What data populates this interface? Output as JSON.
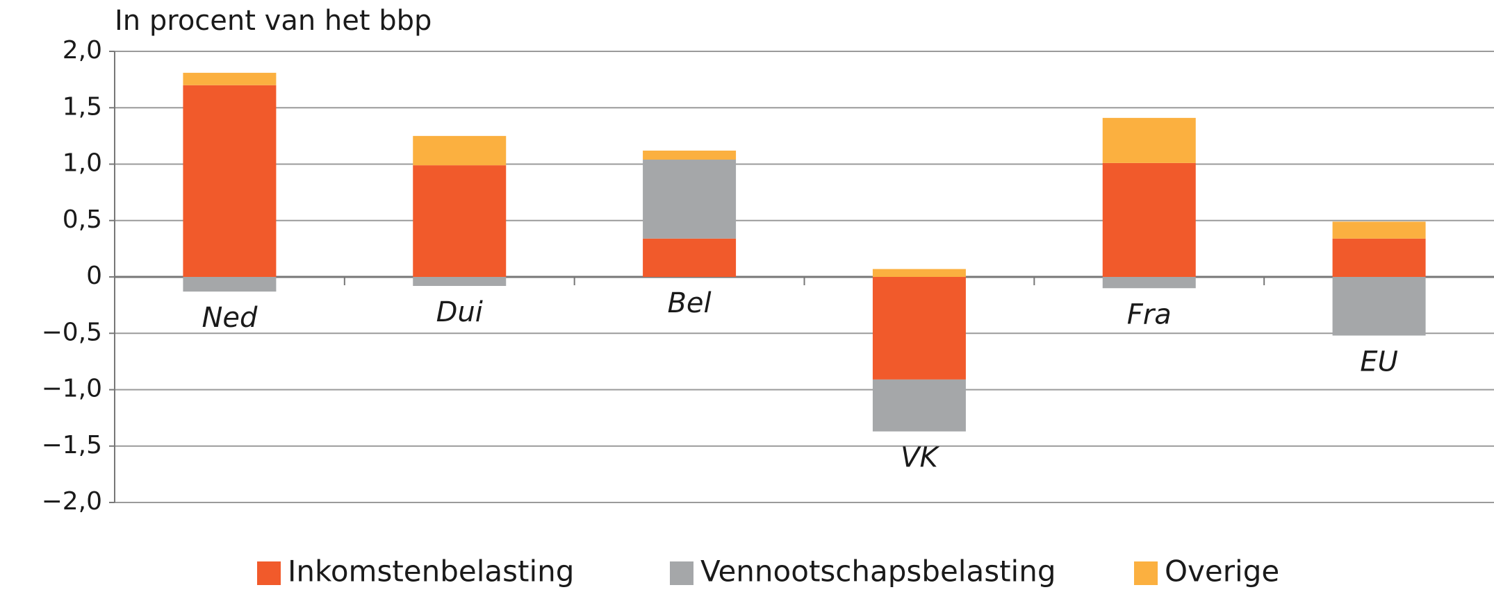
{
  "chart_data": {
    "type": "stacked_bar",
    "title": "In procent van het bbp",
    "categories": [
      "Ned",
      "Dui",
      "Bel",
      "VK",
      "Fra",
      "EU"
    ],
    "series": [
      {
        "name": "Inkomstenbelasting",
        "color": "#f15a2b",
        "values": [
          1.7,
          0.99,
          0.34,
          -0.91,
          1.01,
          0.34
        ]
      },
      {
        "name": "Vennootschapsbelasting",
        "color": "#a5a7a9",
        "values": [
          -0.13,
          -0.08,
          0.7,
          -0.46,
          -0.1,
          -0.52
        ]
      },
      {
        "name": "Overige",
        "color": "#fbb040",
        "values": [
          0.11,
          0.26,
          0.08,
          0.07,
          0.4,
          0.15
        ]
      }
    ],
    "ylim": [
      -2.0,
      2.0
    ],
    "yticks": [
      {
        "value": 2.0,
        "label": "2,0"
      },
      {
        "value": 1.5,
        "label": "1,5"
      },
      {
        "value": 1.0,
        "label": "1,0"
      },
      {
        "value": 0.5,
        "label": "0,5"
      },
      0,
      {
        "value": -0.5,
        "label": "−0,5"
      },
      {
        "value": -1.0,
        "label": "−1,0"
      },
      {
        "value": -1.5,
        "label": "−1,5"
      },
      {
        "value": -2.0,
        "label": "−2,0"
      }
    ],
    "grid": true,
    "legend": "bottom"
  }
}
